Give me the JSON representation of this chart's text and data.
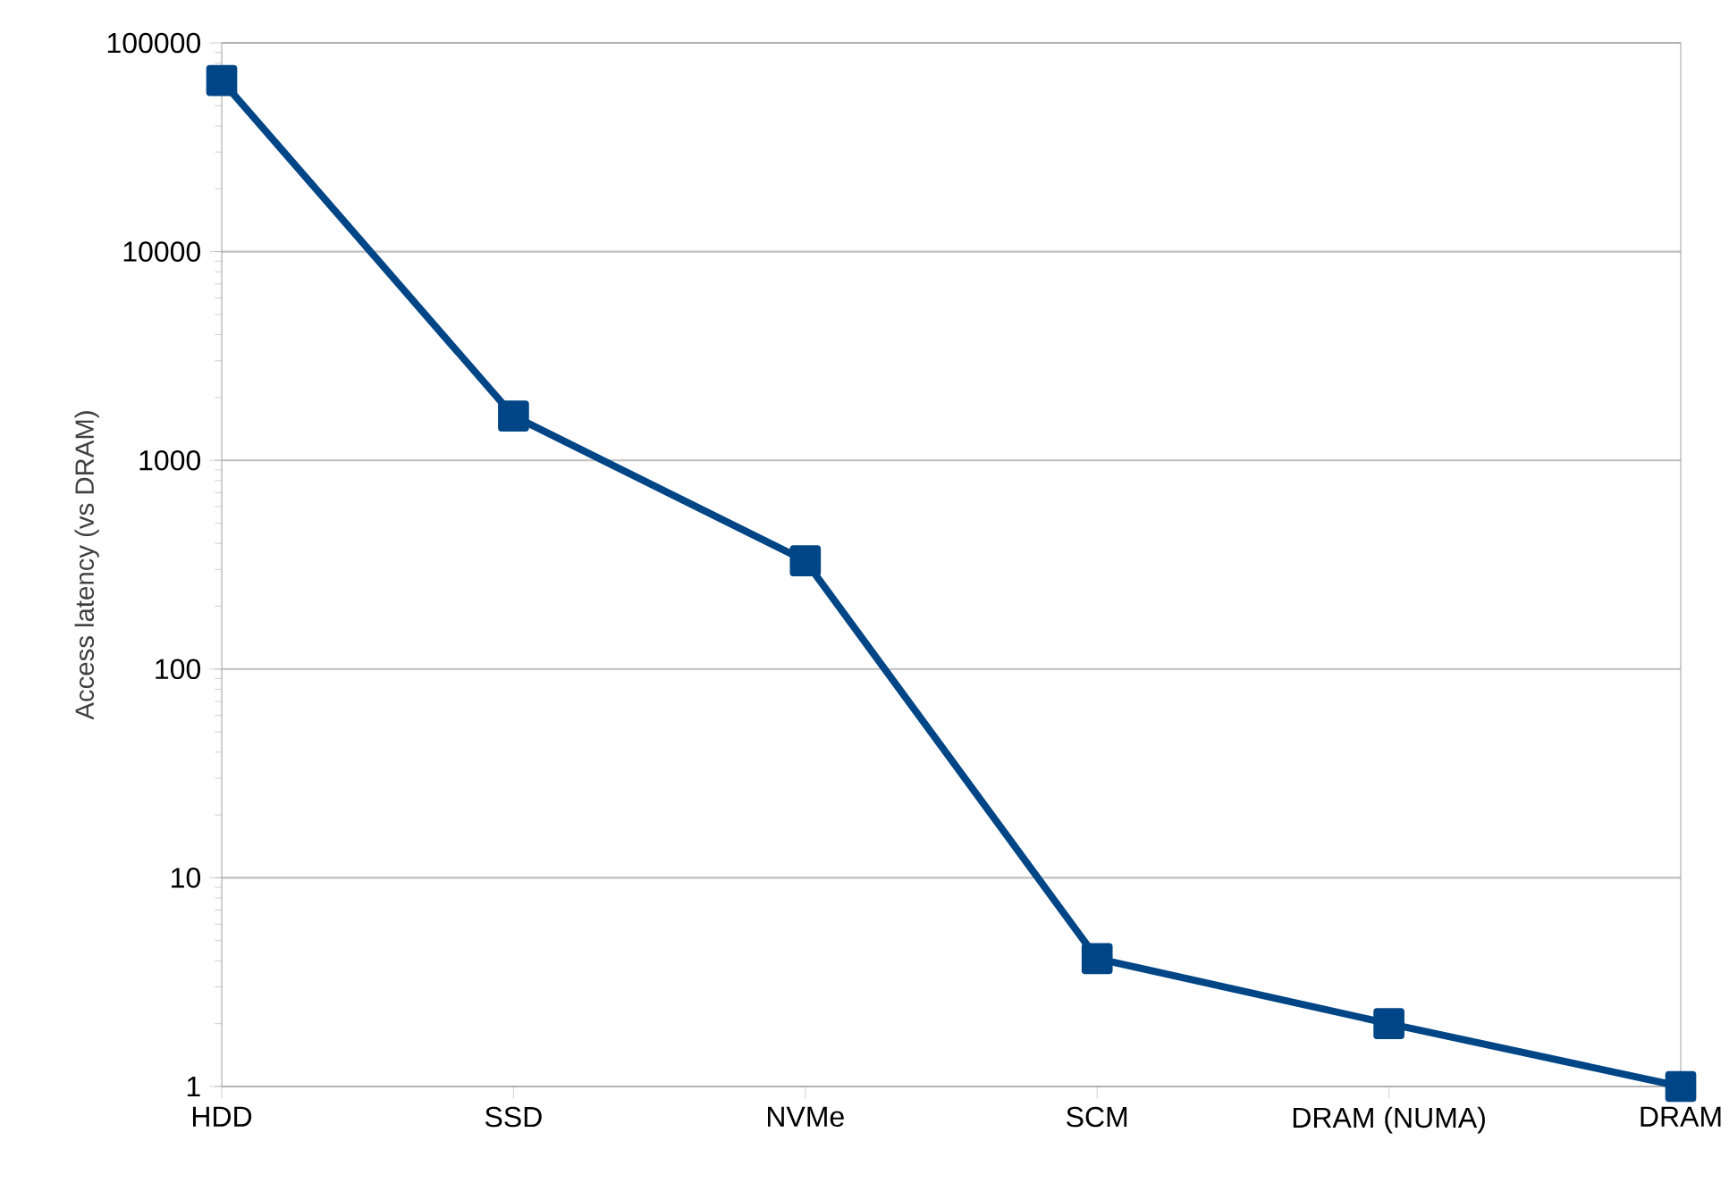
{
  "chart_data": {
    "type": "line",
    "ylabel": "Access latency (vs DRAM)",
    "categories": [
      "HDD",
      "SSD",
      "NVMe",
      "SCM",
      "DRAM (NUMA)",
      "DRAM"
    ],
    "series": [
      {
        "color": "#004586",
        "values": [
          66000,
          1630,
          330,
          4.1,
          2,
          1
        ]
      }
    ],
    "log": "y",
    "ylim": [
      1,
      100000
    ],
    "yticks": [
      1,
      10,
      100,
      1000,
      10000,
      100000
    ],
    "grid": "y",
    "marker": "square",
    "line_style": "solid"
  }
}
